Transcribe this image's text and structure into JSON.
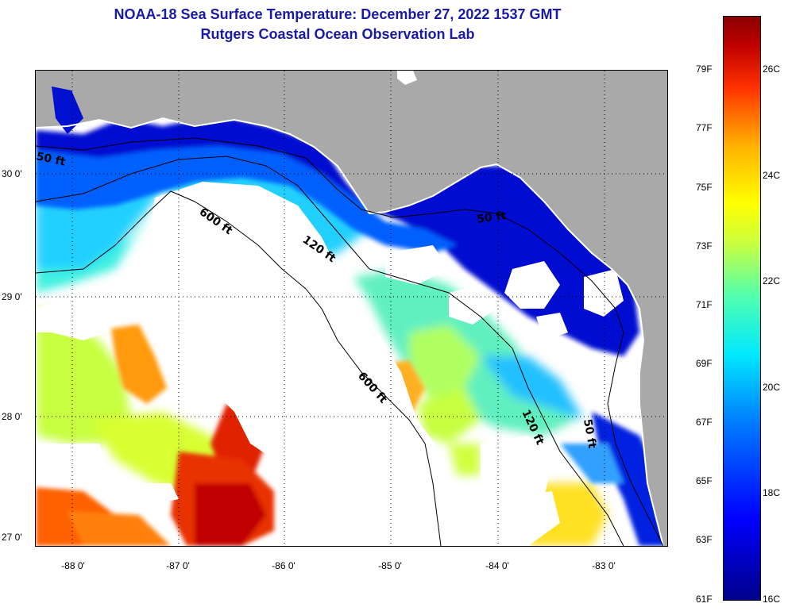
{
  "header": {
    "title": "NOAA-18 Sea Surface Temperature:  December 27, 2022 1537 GMT",
    "subtitle": "Rutgers Coastal Ocean Observation Lab"
  },
  "map": {
    "lat_labels": [
      "30 0'",
      "29 0'",
      "28 0'",
      "27 0'"
    ],
    "lon_labels": [
      "-88 0'",
      "-87 0'",
      "-86 0'",
      "-85 0'",
      "-84 0'",
      "-83 0'"
    ],
    "contour_labels": {
      "c50_west": "50 ft",
      "c50_east": "50 ft",
      "c50_south": "50 ft",
      "c120_north": "120 ft",
      "c120_south": "120 ft",
      "c600_north": "600 ft",
      "c600_south": "600 ft"
    }
  },
  "colorbar": {
    "fahrenheit": [
      "79F",
      "77F",
      "75F",
      "73F",
      "71F",
      "69F",
      "67F",
      "65F",
      "63F",
      "61F"
    ],
    "celsius": [
      "26C",
      "24C",
      "22C",
      "20C",
      "18C",
      "16C"
    ],
    "top_color": "#8b0000",
    "bottom_color": "#00008a"
  },
  "colors": {
    "title": "#1a1aa8",
    "land": "#a9a9a9",
    "cloud": "#ffffff"
  }
}
